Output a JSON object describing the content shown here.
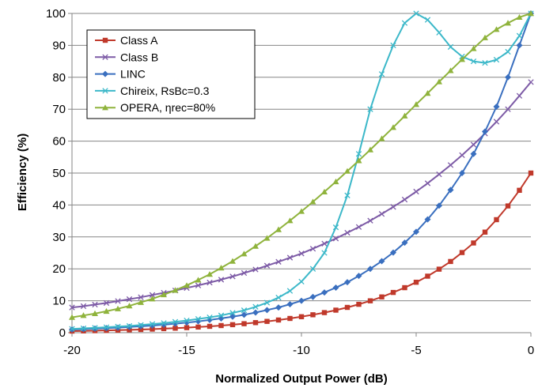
{
  "chart_data": {
    "type": "line",
    "title": "",
    "xlabel": "Normalized Output Power (dB)",
    "ylabel": "Efficiency (%)",
    "xlim": [
      -20,
      0
    ],
    "ylim": [
      0,
      100
    ],
    "x_ticks": [
      -20,
      -15,
      -10,
      -5,
      0
    ],
    "y_ticks": [
      0,
      10,
      20,
      30,
      40,
      50,
      60,
      70,
      80,
      90,
      100
    ],
    "grid": "horizontal",
    "legend_position": "top-left",
    "series": [
      {
        "name": "Class A",
        "color": "#c0392b",
        "marker": "square",
        "x": [
          -20,
          -19.5,
          -19,
          -18.5,
          -18,
          -17.5,
          -17,
          -16.5,
          -16,
          -15.5,
          -15,
          -14.5,
          -14,
          -13.5,
          -13,
          -12.5,
          -12,
          -11.5,
          -11,
          -10.5,
          -10,
          -9.5,
          -9,
          -8.5,
          -8,
          -7.5,
          -7,
          -6.5,
          -6,
          -5.5,
          -5,
          -4.5,
          -4,
          -3.5,
          -3,
          -2.5,
          -2,
          -1.5,
          -1,
          -0.5,
          0
        ],
        "y": [
          0.5,
          0.56,
          0.63,
          0.71,
          0.79,
          0.89,
          1.0,
          1.12,
          1.26,
          1.41,
          1.58,
          1.77,
          1.99,
          2.23,
          2.51,
          2.81,
          3.15,
          3.54,
          3.97,
          4.46,
          5.0,
          5.61,
          6.29,
          7.06,
          7.92,
          8.89,
          9.98,
          11.2,
          12.6,
          14.1,
          15.8,
          17.7,
          19.9,
          22.3,
          25.1,
          28.1,
          31.5,
          35.4,
          39.7,
          44.6,
          50.0
        ]
      },
      {
        "name": "Class B",
        "color": "#7d5ba6",
        "marker": "x",
        "x": [
          -20,
          -19.5,
          -19,
          -18.5,
          -18,
          -17.5,
          -17,
          -16.5,
          -16,
          -15.5,
          -15,
          -14.5,
          -14,
          -13.5,
          -13,
          -12.5,
          -12,
          -11.5,
          -11,
          -10.5,
          -10,
          -9.5,
          -9,
          -8.5,
          -8,
          -7.5,
          -7,
          -6.5,
          -6,
          -5.5,
          -5,
          -4.5,
          -4,
          -3.5,
          -3,
          -2.5,
          -2,
          -1.5,
          -1,
          -0.5,
          0
        ],
        "y": [
          7.9,
          8.3,
          8.8,
          9.3,
          9.9,
          10.5,
          11.1,
          11.8,
          12.5,
          13.2,
          14.0,
          14.8,
          15.7,
          16.6,
          17.6,
          18.7,
          19.8,
          21.0,
          22.2,
          23.5,
          24.8,
          26.3,
          27.9,
          29.5,
          31.3,
          33.1,
          35.1,
          37.2,
          39.4,
          41.7,
          44.2,
          46.8,
          49.6,
          52.5,
          55.6,
          58.9,
          62.4,
          66.1,
          70.0,
          74.2,
          78.5
        ]
      },
      {
        "name": "LINC",
        "color": "#3a6fbf",
        "marker": "diamond",
        "x": [
          -20,
          -19.5,
          -19,
          -18.5,
          -18,
          -17.5,
          -17,
          -16.5,
          -16,
          -15.5,
          -15,
          -14.5,
          -14,
          -13.5,
          -13,
          -12.5,
          -12,
          -11.5,
          -11,
          -10.5,
          -10,
          -9.5,
          -9,
          -8.5,
          -8,
          -7.5,
          -7,
          -6.5,
          -6,
          -5.5,
          -5,
          -4.5,
          -4,
          -3.5,
          -3,
          -2.5,
          -2,
          -1.5,
          -1,
          -0.5,
          0
        ],
        "y": [
          1.0,
          1.12,
          1.26,
          1.42,
          1.59,
          1.78,
          2.0,
          2.24,
          2.51,
          2.82,
          3.16,
          3.55,
          3.98,
          4.47,
          5.0,
          5.6,
          6.3,
          7.1,
          7.9,
          8.9,
          10.0,
          11.2,
          12.6,
          14.1,
          15.8,
          17.8,
          20.0,
          22.4,
          25.1,
          28.2,
          31.6,
          35.5,
          39.8,
          44.7,
          50.0,
          56.0,
          63.0,
          70.8,
          80.0,
          90.0,
          100.0
        ]
      },
      {
        "name": "Chireix, RsBc=0.3",
        "color": "#3cb8c9",
        "marker": "x",
        "x": [
          -20,
          -19.5,
          -19,
          -18.5,
          -18,
          -17.5,
          -17,
          -16.5,
          -16,
          -15.5,
          -15,
          -14.5,
          -14,
          -13.5,
          -13,
          -12.5,
          -12,
          -11.5,
          -11,
          -10.5,
          -10,
          -9.5,
          -9,
          -8.5,
          -8,
          -7.5,
          -7,
          -6.5,
          -6,
          -5.5,
          -5,
          -4.5,
          -4,
          -3.5,
          -3,
          -2.5,
          -2,
          -1.5,
          -1,
          -0.5,
          0
        ],
        "y": [
          1.2,
          1.35,
          1.5,
          1.7,
          1.9,
          2.1,
          2.4,
          2.7,
          3.0,
          3.4,
          3.8,
          4.3,
          4.8,
          5.4,
          6.2,
          7.0,
          8.1,
          9.4,
          11.0,
          13.1,
          16.0,
          20.0,
          25.0,
          33.0,
          43.0,
          56.0,
          70.0,
          81.0,
          90.0,
          97.0,
          100.0,
          98.0,
          94.0,
          89.5,
          86.5,
          85.0,
          84.5,
          85.5,
          88.0,
          93.0,
          100.0
        ]
      },
      {
        "name": "OPERA, ηrec=80%",
        "color": "#8fb33c",
        "marker": "triangle",
        "x": [
          -20,
          -19.5,
          -19,
          -18.5,
          -18,
          -17.5,
          -17,
          -16.5,
          -16,
          -15.5,
          -15,
          -14.5,
          -14,
          -13.5,
          -13,
          -12.5,
          -12,
          -11.5,
          -11,
          -10.5,
          -10,
          -9.5,
          -9,
          -8.5,
          -8,
          -7.5,
          -7,
          -6.5,
          -6,
          -5.5,
          -5,
          -4.5,
          -4,
          -3.5,
          -3,
          -2.5,
          -2,
          -1.5,
          -1,
          -0.5,
          0
        ],
        "y": [
          4.8,
          5.4,
          6.0,
          6.7,
          7.5,
          8.4,
          9.5,
          10.6,
          11.9,
          13.3,
          14.8,
          16.5,
          18.3,
          20.3,
          22.4,
          24.7,
          27.1,
          29.6,
          32.3,
          35.1,
          38.0,
          41.0,
          44.1,
          47.3,
          50.6,
          53.9,
          57.3,
          60.8,
          64.3,
          67.9,
          71.5,
          75.0,
          78.6,
          82.1,
          85.6,
          89.0,
          92.4,
          95.0,
          97.0,
          98.8,
          100.0
        ]
      }
    ]
  }
}
